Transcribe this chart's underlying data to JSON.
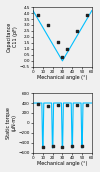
{
  "top": {
    "ylabel": "Capacitance\nC11 (pF)",
    "xlabel": "Mechanical angle (°)",
    "ylim": [
      -0.5,
      4.5
    ],
    "yticks": [
      -0.5,
      0.0,
      0.5,
      1.0,
      1.5,
      2.0,
      2.5,
      3.0,
      3.5,
      4.0,
      4.5
    ],
    "xlim": [
      0,
      60
    ],
    "xticks": [
      0,
      10,
      20,
      30,
      40,
      50,
      60
    ],
    "line_color": "#00bfff",
    "dot_color": "#222222",
    "analytical_x": [
      0,
      5,
      10,
      15,
      20,
      25,
      30,
      35,
      40,
      45,
      50,
      55,
      60
    ],
    "analytical_y": [
      4.2,
      3.5,
      2.8,
      2.1,
      1.4,
      0.7,
      0.0,
      0.7,
      1.4,
      2.1,
      2.8,
      3.5,
      4.2
    ],
    "points_x": [
      5,
      15,
      25,
      30,
      35,
      45,
      55
    ],
    "points_y": [
      3.8,
      3.0,
      1.6,
      0.3,
      1.0,
      2.5,
      3.8
    ]
  },
  "bottom": {
    "ylabel": "Static torque\n(µN·m)",
    "xlabel": "Mechanical angle (°)",
    "ylim": [
      -600,
      600
    ],
    "yticks": [
      -600,
      -400,
      -200,
      0,
      200,
      400,
      600
    ],
    "xlim": [
      0,
      60
    ],
    "xticks": [
      0,
      10,
      20,
      30,
      40,
      50,
      60
    ],
    "line_color": "#00bfff",
    "dot_color": "#222222",
    "analytical_x": [
      0,
      4,
      8,
      9.0,
      9.8,
      10.2,
      11.0,
      14,
      18,
      19.0,
      19.8,
      20.2,
      21.0,
      24,
      28,
      29.0,
      29.8,
      30.2,
      31.0,
      34,
      38,
      39.0,
      39.8,
      40.2,
      41.0,
      44,
      48,
      49.0,
      49.8,
      50.2,
      51.0,
      54,
      58,
      60
    ],
    "analytical_y": [
      400,
      400,
      400,
      400,
      -500,
      -500,
      400,
      400,
      400,
      400,
      -500,
      -500,
      400,
      400,
      400,
      400,
      -500,
      -500,
      400,
      400,
      400,
      400,
      -500,
      -500,
      400,
      400,
      400,
      400,
      -500,
      -500,
      400,
      400,
      400,
      400
    ],
    "points_x": [
      5,
      10,
      15,
      20,
      25,
      30,
      35,
      40,
      45,
      50,
      55
    ],
    "points_y": [
      380,
      -480,
      350,
      -460,
      360,
      -480,
      360,
      -460,
      360,
      -470,
      370
    ]
  }
}
